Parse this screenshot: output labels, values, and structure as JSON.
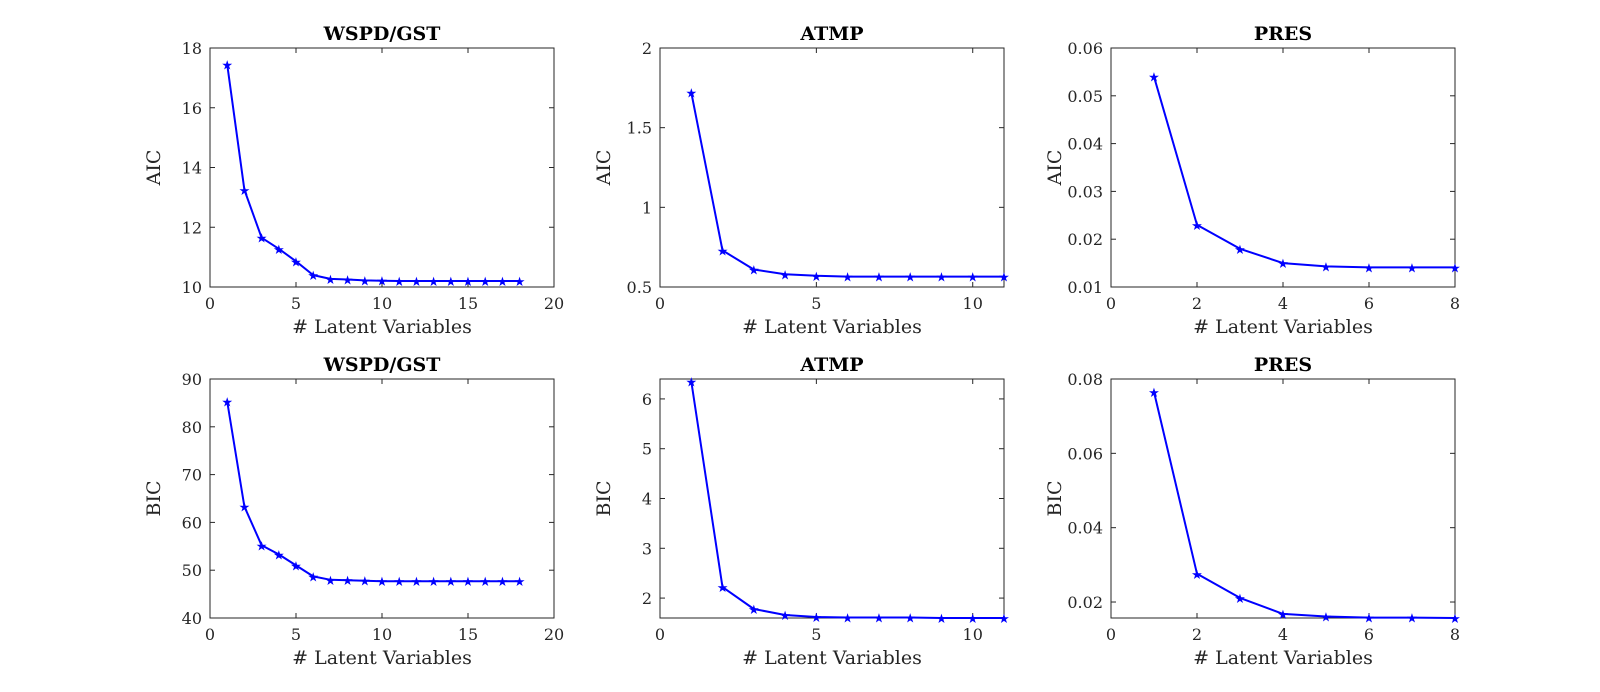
{
  "figure": {
    "line_color": "#0000ff",
    "axis_color": "#262626"
  },
  "chart_data": [
    {
      "type": "line",
      "title": "WSPD/GST",
      "xlabel": "# Latent Variables",
      "ylabel": "AIC",
      "xlim": [
        0,
        20
      ],
      "ylim": [
        10,
        18
      ],
      "xticks": [
        0,
        5,
        10,
        15,
        20
      ],
      "yticks": [
        10,
        12,
        14,
        16,
        18
      ],
      "grid": false,
      "x": [
        1,
        2,
        3,
        4,
        5,
        6,
        7,
        8,
        9,
        10,
        11,
        12,
        13,
        14,
        15,
        16,
        17,
        18
      ],
      "values": [
        17.45,
        13.25,
        11.65,
        11.28,
        10.86,
        10.4,
        10.27,
        10.25,
        10.22,
        10.21,
        10.2,
        10.2,
        10.2,
        10.2,
        10.2,
        10.2,
        10.2,
        10.2
      ]
    },
    {
      "type": "line",
      "title": "ATMP",
      "xlabel": "# Latent Variables",
      "ylabel": "AIC",
      "xlim": [
        0,
        11
      ],
      "ylim": [
        0.5,
        2
      ],
      "xticks": [
        0,
        5,
        10
      ],
      "yticks": [
        0.5,
        1,
        1.5,
        2
      ],
      "grid": false,
      "x": [
        1,
        2,
        3,
        4,
        5,
        6,
        7,
        8,
        9,
        10,
        11
      ],
      "values": [
        1.72,
        0.73,
        0.61,
        0.58,
        0.57,
        0.565,
        0.565,
        0.565,
        0.565,
        0.565,
        0.565
      ]
    },
    {
      "type": "line",
      "title": "PRES",
      "xlabel": "# Latent Variables",
      "ylabel": "AIC",
      "xlim": [
        0,
        8
      ],
      "ylim": [
        0.01,
        0.06
      ],
      "xticks": [
        0,
        2,
        4,
        6,
        8
      ],
      "yticks": [
        0.01,
        0.02,
        0.03,
        0.04,
        0.05,
        0.06
      ],
      "grid": false,
      "x": [
        1,
        2,
        3,
        4,
        5,
        6,
        7,
        8
      ],
      "values": [
        0.054,
        0.023,
        0.018,
        0.015,
        0.0143,
        0.0141,
        0.0141,
        0.0141
      ]
    },
    {
      "type": "line",
      "title": "WSPD/GST",
      "xlabel": "# Latent Variables",
      "ylabel": "BIC",
      "xlim": [
        0,
        20
      ],
      "ylim": [
        40,
        90
      ],
      "xticks": [
        0,
        5,
        10,
        15,
        20
      ],
      "yticks": [
        40,
        50,
        60,
        70,
        80,
        90
      ],
      "grid": false,
      "x": [
        1,
        2,
        3,
        4,
        5,
        6,
        7,
        8,
        9,
        10,
        11,
        12,
        13,
        14,
        15,
        16,
        17,
        18
      ],
      "values": [
        85.3,
        63.3,
        55.2,
        53.3,
        51.0,
        48.7,
        48.0,
        47.9,
        47.8,
        47.7,
        47.7,
        47.7,
        47.7,
        47.7,
        47.7,
        47.7,
        47.7,
        47.7
      ]
    },
    {
      "type": "line",
      "title": "ATMP",
      "xlabel": "# Latent Variables",
      "ylabel": "BIC",
      "xlim": [
        0,
        11
      ],
      "ylim": [
        1.6,
        6.4
      ],
      "xticks": [
        0,
        5,
        10
      ],
      "yticks": [
        2,
        3,
        4,
        5,
        6
      ],
      "grid": false,
      "x": [
        1,
        2,
        3,
        4,
        5,
        6,
        7,
        8,
        9,
        10,
        11
      ],
      "values": [
        6.35,
        2.22,
        1.78,
        1.66,
        1.62,
        1.61,
        1.61,
        1.61,
        1.6,
        1.6,
        1.6
      ]
    },
    {
      "type": "line",
      "title": "PRES",
      "xlabel": "# Latent Variables",
      "ylabel": "BIC",
      "xlim": [
        0,
        8
      ],
      "ylim": [
        0.0157,
        0.08
      ],
      "xticks": [
        0,
        2,
        4,
        6,
        8
      ],
      "yticks": [
        0.02,
        0.04,
        0.06,
        0.08
      ],
      "grid": false,
      "x": [
        1,
        2,
        3,
        4,
        5,
        6,
        7,
        8
      ],
      "values": [
        0.0765,
        0.0276,
        0.0211,
        0.0168,
        0.0161,
        0.0158,
        0.0158,
        0.0157
      ]
    }
  ]
}
